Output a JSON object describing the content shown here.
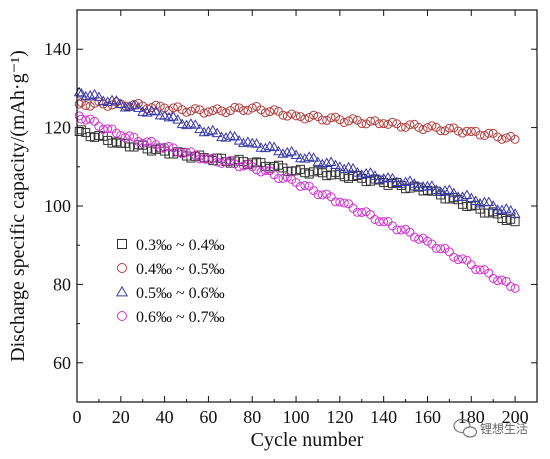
{
  "chart_data": {
    "type": "scatter",
    "xlabel": "Cycle number",
    "ylabel": "Discharge specific capacity/(mAh·g⁻¹)",
    "xlim": [
      0,
      210
    ],
    "ylim": [
      50,
      150
    ],
    "xticks": [
      0,
      20,
      40,
      60,
      80,
      100,
      120,
      140,
      160,
      180,
      200
    ],
    "yticks": [
      60,
      80,
      100,
      120,
      140
    ],
    "grid": false,
    "legend_position": "lower-left",
    "series": [
      {
        "name": "0.3‰ ~ 0.4‰",
        "marker": "square",
        "color": "#333333",
        "x": [
          1,
          20,
          40,
          60,
          80,
          100,
          120,
          140,
          160,
          180,
          200
        ],
        "values": [
          119,
          116,
          114,
          112,
          111,
          109,
          108,
          106,
          104,
          100,
          96
        ]
      },
      {
        "name": "0.4‰ ~ 0.5‰",
        "marker": "circle",
        "color": "#b04040",
        "x": [
          1,
          20,
          40,
          60,
          80,
          100,
          120,
          140,
          160,
          180,
          200
        ],
        "values": [
          126,
          126,
          125,
          124,
          125,
          123,
          122,
          121,
          120,
          119,
          117
        ]
      },
      {
        "name": "0.5‰ ~ 0.6‰",
        "marker": "triangle",
        "color": "#3a3aa8",
        "x": [
          1,
          20,
          40,
          60,
          80,
          100,
          120,
          140,
          160,
          180,
          200
        ],
        "values": [
          129,
          126,
          123,
          119,
          116,
          113,
          110,
          107,
          105,
          102,
          98
        ]
      },
      {
        "name": "0.6‰ ~ 0.7‰",
        "marker": "circle",
        "color": "#cc33cc",
        "x": [
          1,
          20,
          40,
          60,
          80,
          100,
          120,
          140,
          160,
          180,
          200
        ],
        "values": [
          123,
          118,
          115,
          112,
          110,
          106,
          101,
          96,
          91,
          85,
          79
        ]
      }
    ]
  },
  "watermark": {
    "text": "锂想生活"
  }
}
